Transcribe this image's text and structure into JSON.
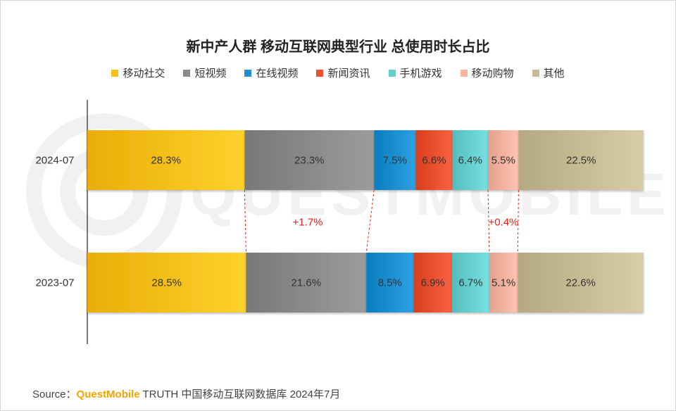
{
  "chart_data": {
    "type": "bar",
    "orientation": "horizontal",
    "stacked": true,
    "title": "新中产人群 移动互联网典型行业 总使用时长占比",
    "categories": [
      "2024-07",
      "2023-07"
    ],
    "series": [
      {
        "name": "移动社交",
        "values": [
          28.3,
          28.5
        ],
        "labels": [
          "28.3%",
          "28.5%"
        ],
        "color": "#fbbf1a"
      },
      {
        "name": "短视频",
        "values": [
          23.3,
          21.6
        ],
        "labels": [
          "23.3%",
          "21.6%"
        ],
        "color": "#8a8a8a"
      },
      {
        "name": "在线视频",
        "values": [
          7.5,
          8.5
        ],
        "labels": [
          "7.5%",
          "8.5%"
        ],
        "color": "#1b8fd0"
      },
      {
        "name": "新闻资讯",
        "values": [
          6.6,
          6.9
        ],
        "labels": [
          "6.6%",
          "6.9%"
        ],
        "color": "#e9502f"
      },
      {
        "name": "手机游戏",
        "values": [
          6.4,
          6.7
        ],
        "labels": [
          "6.4%",
          "6.7%"
        ],
        "color": "#66cfcf"
      },
      {
        "name": "移动购物",
        "values": [
          5.5,
          5.1
        ],
        "labels": [
          "5.5%",
          "5.1%"
        ],
        "color": "#f7b2a0"
      },
      {
        "name": "其他",
        "values": [
          22.5,
          22.6
        ],
        "labels": [
          "22.5%",
          "22.6%"
        ],
        "color": "#c6bb93"
      }
    ],
    "annotations": [
      {
        "text": "+1.7%",
        "between_series": [
          "短视频"
        ],
        "color": "#e2231a"
      },
      {
        "text": "+0.4%",
        "between_series": [
          "移动购物"
        ],
        "color": "#e2231a"
      }
    ],
    "xlim": [
      0,
      100
    ],
    "grid": false,
    "legend_position": "top"
  },
  "source": {
    "prefix": "Source：",
    "brand": "QuestMobile",
    "suffix": " TRUTH 中国移动互联网数据库 2024年7月"
  }
}
